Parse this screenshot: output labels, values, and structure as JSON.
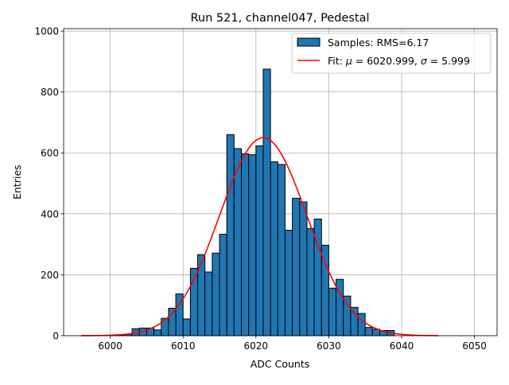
{
  "chart_data": {
    "type": "bar",
    "title": "Run 521, channel047, Pedestal",
    "xlabel": "ADC Counts",
    "ylabel": "Entries",
    "xlim": [
      5993.6,
      6053.1
    ],
    "ylim": [
      0,
      1008
    ],
    "xticks": [
      6000,
      6010,
      6020,
      6030,
      6040,
      6050
    ],
    "yticks": [
      0,
      200,
      400,
      600,
      800,
      1000
    ],
    "grid": true,
    "legend_placement": "upper right",
    "bin_width": 1,
    "bins": [
      6001,
      6002,
      6003,
      6004,
      6005,
      6006,
      6007,
      6008,
      6009,
      6010,
      6011,
      6012,
      6013,
      6014,
      6015,
      6016,
      6017,
      6018,
      6019,
      6020,
      6021,
      6022,
      6023,
      6024,
      6025,
      6026,
      6027,
      6028,
      6029,
      6030,
      6031,
      6032,
      6033,
      6034,
      6035,
      6036,
      6037,
      6038
    ],
    "values": [
      3,
      5,
      23,
      25,
      25,
      19,
      57,
      90,
      137,
      55,
      221,
      266,
      209,
      271,
      333,
      660,
      614,
      597,
      594,
      623,
      875,
      571,
      562,
      346,
      451,
      439,
      352,
      383,
      297,
      156,
      185,
      130,
      93,
      73,
      27,
      21,
      17,
      17
    ],
    "bar_color": "#1f77b4",
    "fit": {
      "mu": 6020.999,
      "sigma": 5.999,
      "amplitude": 650,
      "range": [
        5996,
        6045
      ],
      "color": "#ff0000"
    },
    "legend": [
      {
        "label": "Samples: RMS=6.17",
        "kind": "patch"
      },
      {
        "label_prefix": "Fit: ",
        "mu_sym": "μ",
        "mu_text": " = 6020.999, ",
        "sigma_sym": "σ",
        "sigma_text": " = 5.999",
        "kind": "line"
      }
    ]
  }
}
